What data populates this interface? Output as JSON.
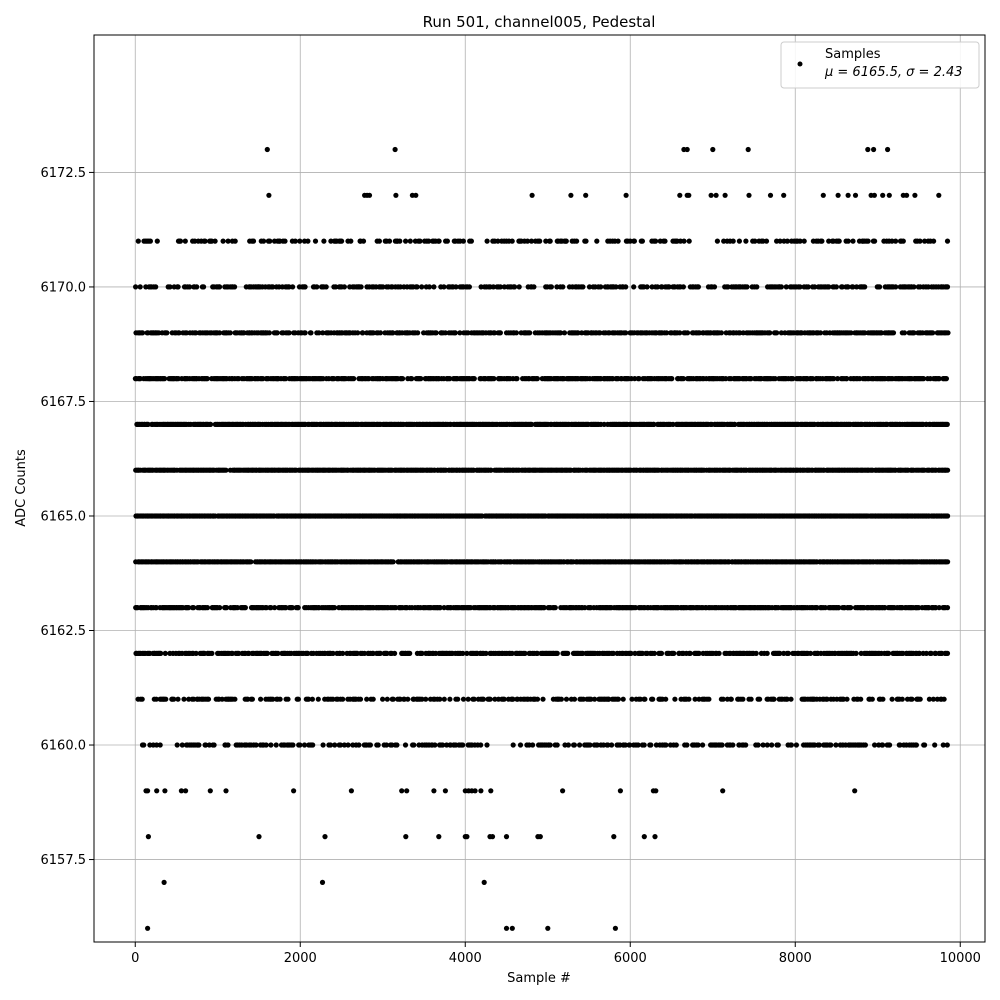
{
  "chart_data": {
    "type": "scatter",
    "title": "Run 501, channel005, Pedestal",
    "xlabel": "Sample #",
    "ylabel": "ADC Counts",
    "xlim": [
      -500,
      10300
    ],
    "ylim": [
      6155.7,
      6175.5
    ],
    "xticks": [
      0,
      2000,
      4000,
      6000,
      8000,
      10000
    ],
    "xtick_labels": [
      "0",
      "2000",
      "4000",
      "6000",
      "8000",
      "10000"
    ],
    "yticks": [
      6157.5,
      6160.0,
      6162.5,
      6165.0,
      6167.5,
      6170.0,
      6172.5
    ],
    "ytick_labels": [
      "6157.5",
      "6160.0",
      "6162.5",
      "6165.0",
      "6167.5",
      "6170.0",
      "6172.5"
    ],
    "grid": true,
    "marker_color": "#000000",
    "legend": {
      "placement": "top-right",
      "entries": [
        {
          "label": "Samples",
          "sublabel": "μ = 6165.5, σ = 2.43"
        }
      ]
    },
    "series": [
      {
        "name": "Samples",
        "x_range": [
          0,
          9850
        ],
        "levels": [
          6156,
          6157,
          6158,
          6159,
          6160,
          6161,
          6162,
          6163,
          6164,
          6165,
          6166,
          6167,
          6168,
          6169,
          6170,
          6171,
          6172,
          6173
        ],
        "points": [
          [
            150,
            6156
          ],
          [
            4500,
            6156
          ],
          [
            4570,
            6156
          ],
          [
            5000,
            6156
          ],
          [
            5820,
            6156
          ],
          [
            350,
            6157
          ],
          [
            2270,
            6157
          ],
          [
            4230,
            6157
          ],
          [
            160,
            6158
          ],
          [
            1500,
            6158
          ],
          [
            2300,
            6158
          ],
          [
            3280,
            6158
          ],
          [
            3680,
            6158
          ],
          [
            4000,
            6158
          ],
          [
            4020,
            6158
          ],
          [
            4300,
            6158
          ],
          [
            4330,
            6158
          ],
          [
            4500,
            6158
          ],
          [
            4880,
            6158
          ],
          [
            4910,
            6158
          ],
          [
            5800,
            6158
          ],
          [
            6170,
            6158
          ],
          [
            6300,
            6158
          ],
          [
            130,
            6159
          ],
          [
            150,
            6159
          ],
          [
            260,
            6159
          ],
          [
            360,
            6159
          ],
          [
            560,
            6159
          ],
          [
            610,
            6159
          ],
          [
            910,
            6159
          ],
          [
            1100,
            6159
          ],
          [
            1920,
            6159
          ],
          [
            2620,
            6159
          ],
          [
            3230,
            6159
          ],
          [
            3290,
            6159
          ],
          [
            3620,
            6159
          ],
          [
            3760,
            6159
          ],
          [
            4000,
            6159
          ],
          [
            4040,
            6159
          ],
          [
            4080,
            6159
          ],
          [
            4120,
            6159
          ],
          [
            4190,
            6159
          ],
          [
            4310,
            6159
          ],
          [
            5180,
            6159
          ],
          [
            5880,
            6159
          ],
          [
            6280,
            6159
          ],
          [
            6310,
            6159
          ],
          [
            7120,
            6159
          ],
          [
            8720,
            6159
          ],
          [
            1600,
            6173
          ],
          [
            3150,
            6173
          ],
          [
            6650,
            6173
          ],
          [
            6690,
            6173
          ],
          [
            7000,
            6173
          ],
          [
            7430,
            6173
          ],
          [
            8880,
            6173
          ],
          [
            8950,
            6173
          ],
          [
            9120,
            6173
          ],
          [
            1620,
            6172
          ],
          [
            2780,
            6172
          ],
          [
            2810,
            6172
          ],
          [
            2840,
            6172
          ],
          [
            3160,
            6172
          ],
          [
            3360,
            6172
          ],
          [
            3400,
            6172
          ],
          [
            4810,
            6172
          ],
          [
            5280,
            6172
          ],
          [
            5460,
            6172
          ],
          [
            5950,
            6172
          ],
          [
            6600,
            6172
          ],
          [
            6690,
            6172
          ],
          [
            6710,
            6172
          ],
          [
            6980,
            6172
          ],
          [
            7040,
            6172
          ],
          [
            7150,
            6172
          ],
          [
            7440,
            6172
          ],
          [
            7700,
            6172
          ],
          [
            7860,
            6172
          ],
          [
            8340,
            6172
          ],
          [
            8520,
            6172
          ],
          [
            8640,
            6172
          ],
          [
            8730,
            6172
          ],
          [
            8920,
            6172
          ],
          [
            8960,
            6172
          ],
          [
            9060,
            6172
          ],
          [
            9140,
            6172
          ],
          [
            9310,
            6172
          ],
          [
            9350,
            6172
          ],
          [
            9450,
            6172
          ],
          [
            9740,
            6172
          ]
        ],
        "level_density": {
          "6160": 0.35,
          "6161": 0.4,
          "6162": 0.6,
          "6163": 0.75,
          "6164": 0.95,
          "6165": 0.98,
          "6166": 0.92,
          "6167": 0.88,
          "6168": 0.7,
          "6169": 0.6,
          "6170": 0.45,
          "6171": 0.28
        }
      }
    ]
  }
}
